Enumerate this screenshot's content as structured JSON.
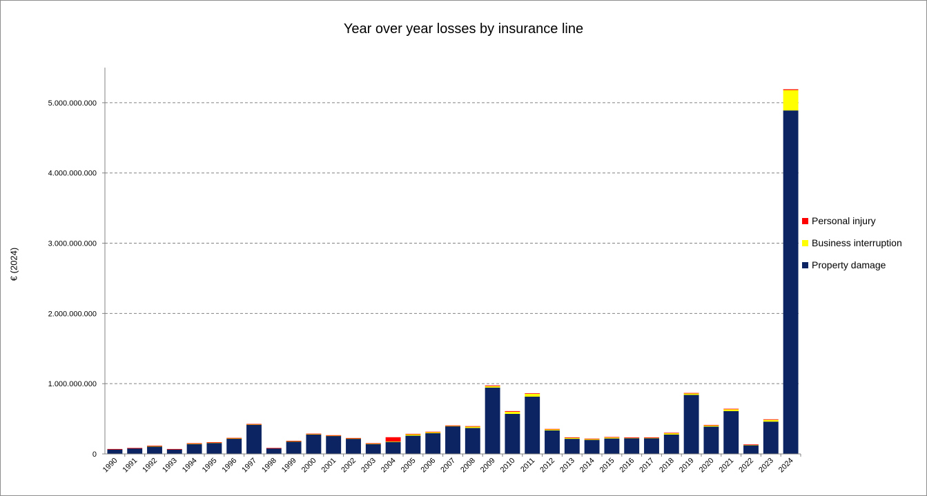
{
  "chart_data": {
    "type": "bar",
    "stacked": true,
    "title": "Year over year losses by insurance line",
    "ylabel": "€ (2024)",
    "xlabel": "",
    "ylim": [
      0,
      5500000000
    ],
    "yticks": [
      0,
      1000000000,
      2000000000,
      3000000000,
      4000000000,
      5000000000
    ],
    "ytick_labels": [
      "0",
      "1.000.000.000",
      "2.000.000.000",
      "3.000.000.000",
      "4.000.000.000",
      "5.000.000.000"
    ],
    "grid": true,
    "legend_position": "right",
    "categories": [
      "1990",
      "1991",
      "1992",
      "1993",
      "1994",
      "1995",
      "1996",
      "1997",
      "1998",
      "1999",
      "2000",
      "2001",
      "2002",
      "2003",
      "2004",
      "2005",
      "2006",
      "2007",
      "2008",
      "2009",
      "2010",
      "2011",
      "2012",
      "2013",
      "2014",
      "2015",
      "2016",
      "2017",
      "2018",
      "2019",
      "2020",
      "2021",
      "2022",
      "2023",
      "2024"
    ],
    "series": [
      {
        "name": "Property damage",
        "color": "#0c2461",
        "values": [
          65000000,
          80000000,
          110000000,
          65000000,
          145000000,
          160000000,
          220000000,
          420000000,
          80000000,
          180000000,
          280000000,
          260000000,
          220000000,
          145000000,
          175000000,
          260000000,
          295000000,
          395000000,
          370000000,
          945000000,
          570000000,
          815000000,
          335000000,
          215000000,
          200000000,
          220000000,
          225000000,
          225000000,
          275000000,
          840000000,
          390000000,
          610000000,
          125000000,
          460000000,
          4890000000
        ]
      },
      {
        "name": "Business interruption",
        "color": "#ffff00",
        "values": [
          0,
          0,
          2000000,
          0,
          2000000,
          2000000,
          3000000,
          2000000,
          0,
          2000000,
          3000000,
          2000000,
          2000000,
          2000000,
          3000000,
          20000000,
          15000000,
          5000000,
          20000000,
          20000000,
          30000000,
          40000000,
          15000000,
          15000000,
          12000000,
          15000000,
          5000000,
          5000000,
          20000000,
          20000000,
          15000000,
          25000000,
          5000000,
          25000000,
          290000000
        ]
      },
      {
        "name": "Personal injury",
        "color": "#ff0000",
        "values": [
          5000000,
          5000000,
          6000000,
          5000000,
          6000000,
          5000000,
          6000000,
          5000000,
          5000000,
          5000000,
          6000000,
          5000000,
          5000000,
          6000000,
          60000000,
          6000000,
          6000000,
          6000000,
          6000000,
          10000000,
          10000000,
          8000000,
          6000000,
          6000000,
          6000000,
          6000000,
          5000000,
          6000000,
          6000000,
          8000000,
          8000000,
          8000000,
          5000000,
          8000000,
          12000000
        ]
      }
    ]
  }
}
